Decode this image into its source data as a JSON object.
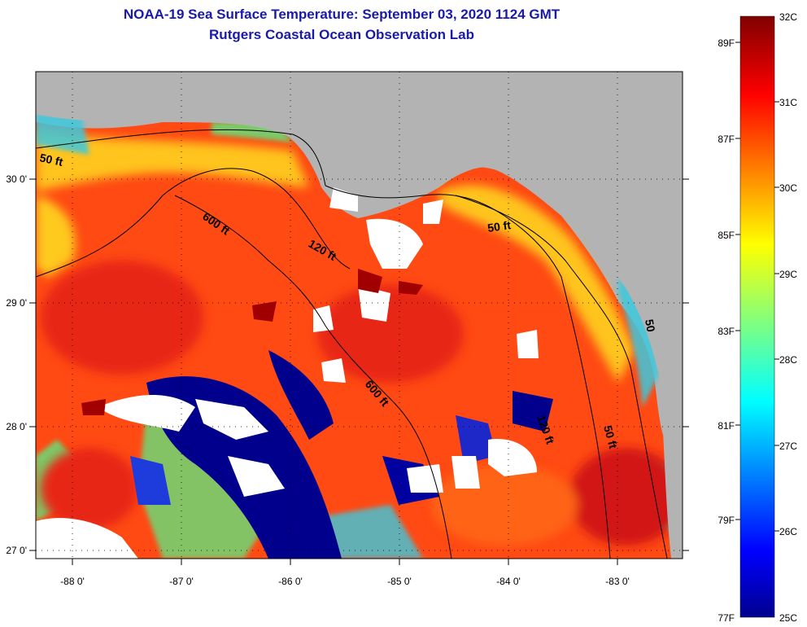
{
  "header": {
    "title": "NOAA-19 Sea Surface Temperature:  September 03, 2020 1124 GMT",
    "subtitle": "Rutgers Coastal Ocean Observation Lab"
  },
  "map": {
    "longitude_ticks": [
      "-88 0'",
      "-87 0'",
      "-86 0'",
      "-85 0'",
      "-84 0'",
      "-83 0'"
    ],
    "latitude_ticks": [
      "30 0'",
      "29 0'",
      "28 0'",
      "27 0'"
    ],
    "contour_labels": [
      "50 ft",
      "600 ft",
      "120 ft",
      "50 ft",
      "600 ft",
      "120 ft",
      "50 ft",
      "50"
    ],
    "colors": {
      "land": "#b3b3b3",
      "cloud": "#ffffff",
      "cold_water": "#00008c",
      "warm_water": "#ff3c10",
      "hot_water": "#c8141e"
    }
  },
  "colorbar": {
    "celsius_labels": [
      "32C",
      "31C",
      "30C",
      "29C",
      "28C",
      "27C",
      "26C",
      "25C"
    ],
    "fahrenheit_labels": [
      "89F",
      "87F",
      "85F",
      "83F",
      "81F",
      "79F",
      "77F"
    ],
    "min_c": 25,
    "max_c": 32
  }
}
